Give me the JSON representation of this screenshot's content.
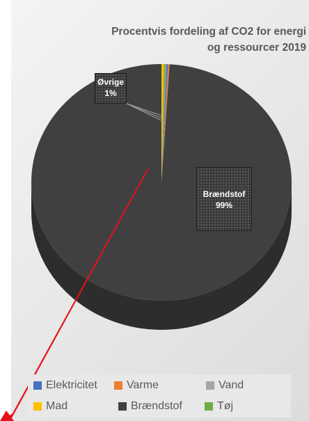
{
  "chart_data": {
    "type": "pie",
    "title": "Procentvis fordeling af CO2 for energi og ressourcer 2019",
    "categories": [
      "Elektricitet",
      "Varme",
      "Vand",
      "Mad",
      "Brændstof",
      "Tøj"
    ],
    "values": [
      0.2,
      0.2,
      0.1,
      0.3,
      99,
      0.2
    ],
    "data_labels": [
      {
        "name": "Øvrige",
        "value": "1%"
      },
      {
        "name": "Brændstof",
        "value": "99%"
      }
    ],
    "legend_position": "bottom",
    "colors": {
      "Elektricitet": "#4472c4",
      "Varme": "#ed7d31",
      "Vand": "#a5a5a5",
      "Mad": "#ffc000",
      "Brændstof": "#404040",
      "Tøj": "#70ad47"
    }
  },
  "legend": {
    "items": [
      "Elektricitet",
      "Varme",
      "Vand",
      "Mad",
      "Brændstof",
      "Tøj"
    ]
  }
}
